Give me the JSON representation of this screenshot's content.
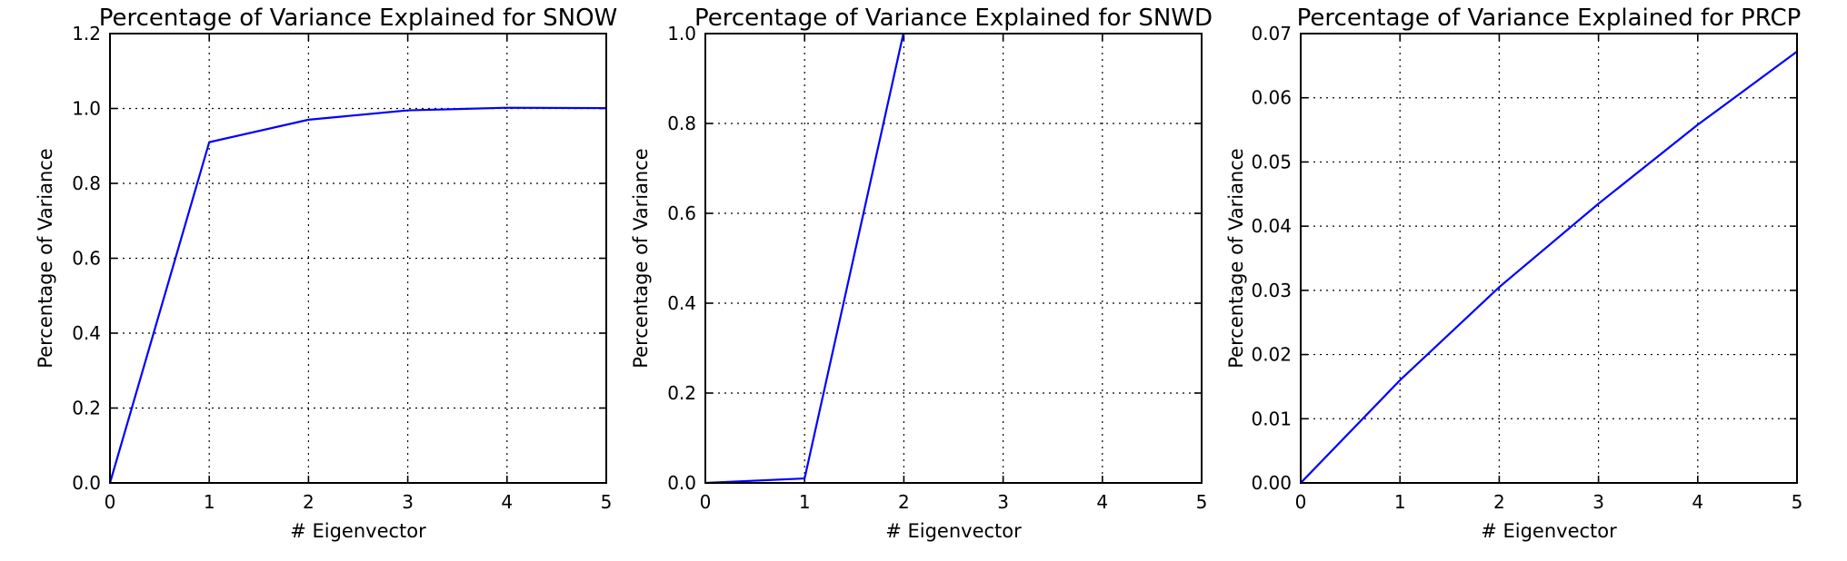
{
  "chart_data": [
    {
      "type": "line",
      "title": "Percentage of Variance Explained for SNOW",
      "xlabel": "# Eigenvector",
      "ylabel": "Percentage of Variance",
      "xlim": [
        0,
        5
      ],
      "ylim": [
        0,
        1.2
      ],
      "xticks": [
        "0",
        "1",
        "2",
        "3",
        "4",
        "5"
      ],
      "yticks": [
        "0.0",
        "0.2",
        "0.4",
        "0.6",
        "0.8",
        "1.0",
        "1.2"
      ],
      "grid": true,
      "series": [
        {
          "color": "#0000ff",
          "x": [
            0,
            1,
            2,
            3,
            4,
            5
          ],
          "y": [
            0.0,
            0.91,
            0.97,
            0.995,
            1.002,
            1.001
          ]
        }
      ]
    },
    {
      "type": "line",
      "title": "Percentage of Variance Explained for SNWD",
      "xlabel": "# Eigenvector",
      "ylabel": "Percentage of Variance",
      "xlim": [
        0,
        5
      ],
      "ylim": [
        0,
        1.0
      ],
      "xticks": [
        "0",
        "1",
        "2",
        "3",
        "4",
        "5"
      ],
      "yticks": [
        "0.0",
        "0.2",
        "0.4",
        "0.6",
        "0.8",
        "1.0"
      ],
      "grid": true,
      "series": [
        {
          "color": "#0000ff",
          "x": [
            0,
            1,
            2,
            3,
            4,
            5
          ],
          "y": [
            0.0,
            0.01,
            1.005,
            1.01,
            1.01,
            1.01
          ]
        }
      ]
    },
    {
      "type": "line",
      "title": "Percentage of Variance Explained for PRCP",
      "xlabel": "# Eigenvector",
      "ylabel": "Percentage of Variance",
      "xlim": [
        0,
        5
      ],
      "ylim": [
        0,
        0.07
      ],
      "xticks": [
        "0",
        "1",
        "2",
        "3",
        "4",
        "5"
      ],
      "yticks": [
        "0.00",
        "0.01",
        "0.02",
        "0.03",
        "0.04",
        "0.05",
        "0.06",
        "0.07"
      ],
      "grid": true,
      "series": [
        {
          "color": "#0000ff",
          "x": [
            0,
            1,
            2,
            3,
            4,
            5
          ],
          "y": [
            0.0,
            0.016,
            0.0305,
            0.0435,
            0.0558,
            0.0672
          ]
        }
      ]
    }
  ]
}
